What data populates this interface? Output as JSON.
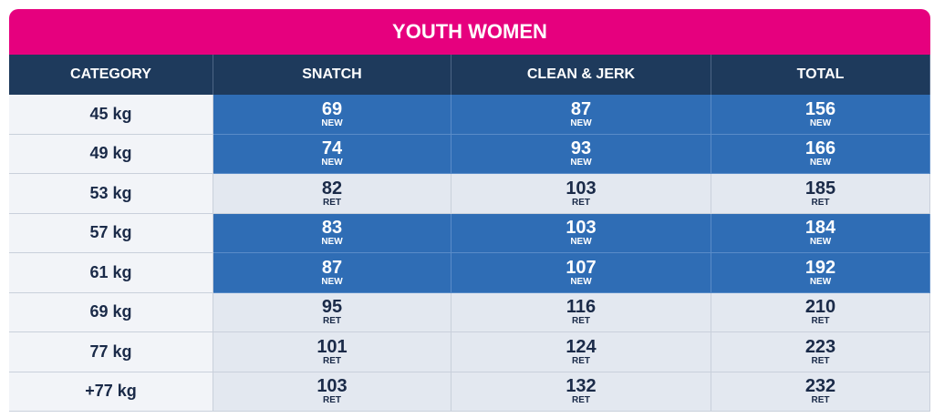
{
  "title": "YOUTH WOMEN",
  "table": {
    "headers": [
      "CATEGORY",
      "SNATCH",
      "CLEAN & JERK",
      "TOTAL"
    ],
    "rows": [
      {
        "category": "45 kg",
        "cells": [
          {
            "value": 69,
            "status": "NEW"
          },
          {
            "value": 87,
            "status": "NEW"
          },
          {
            "value": 156,
            "status": "NEW"
          }
        ]
      },
      {
        "category": "49 kg",
        "cells": [
          {
            "value": 74,
            "status": "NEW"
          },
          {
            "value": 93,
            "status": "NEW"
          },
          {
            "value": 166,
            "status": "NEW"
          }
        ]
      },
      {
        "category": "53 kg",
        "cells": [
          {
            "value": 82,
            "status": "RET"
          },
          {
            "value": 103,
            "status": "RET"
          },
          {
            "value": 185,
            "status": "RET"
          }
        ]
      },
      {
        "category": "57 kg",
        "cells": [
          {
            "value": 83,
            "status": "NEW"
          },
          {
            "value": 103,
            "status": "NEW"
          },
          {
            "value": 184,
            "status": "NEW"
          }
        ]
      },
      {
        "category": "61 kg",
        "cells": [
          {
            "value": 87,
            "status": "NEW"
          },
          {
            "value": 107,
            "status": "NEW"
          },
          {
            "value": 192,
            "status": "NEW"
          }
        ]
      },
      {
        "category": "69 kg",
        "cells": [
          {
            "value": 95,
            "status": "RET"
          },
          {
            "value": 116,
            "status": "RET"
          },
          {
            "value": 210,
            "status": "RET"
          }
        ]
      },
      {
        "category": "77 kg",
        "cells": [
          {
            "value": 101,
            "status": "RET"
          },
          {
            "value": 124,
            "status": "RET"
          },
          {
            "value": 223,
            "status": "RET"
          }
        ]
      },
      {
        "category": "+77 kg",
        "cells": [
          {
            "value": 103,
            "status": "RET"
          },
          {
            "value": 132,
            "status": "RET"
          },
          {
            "value": 232,
            "status": "RET"
          }
        ]
      }
    ]
  }
}
